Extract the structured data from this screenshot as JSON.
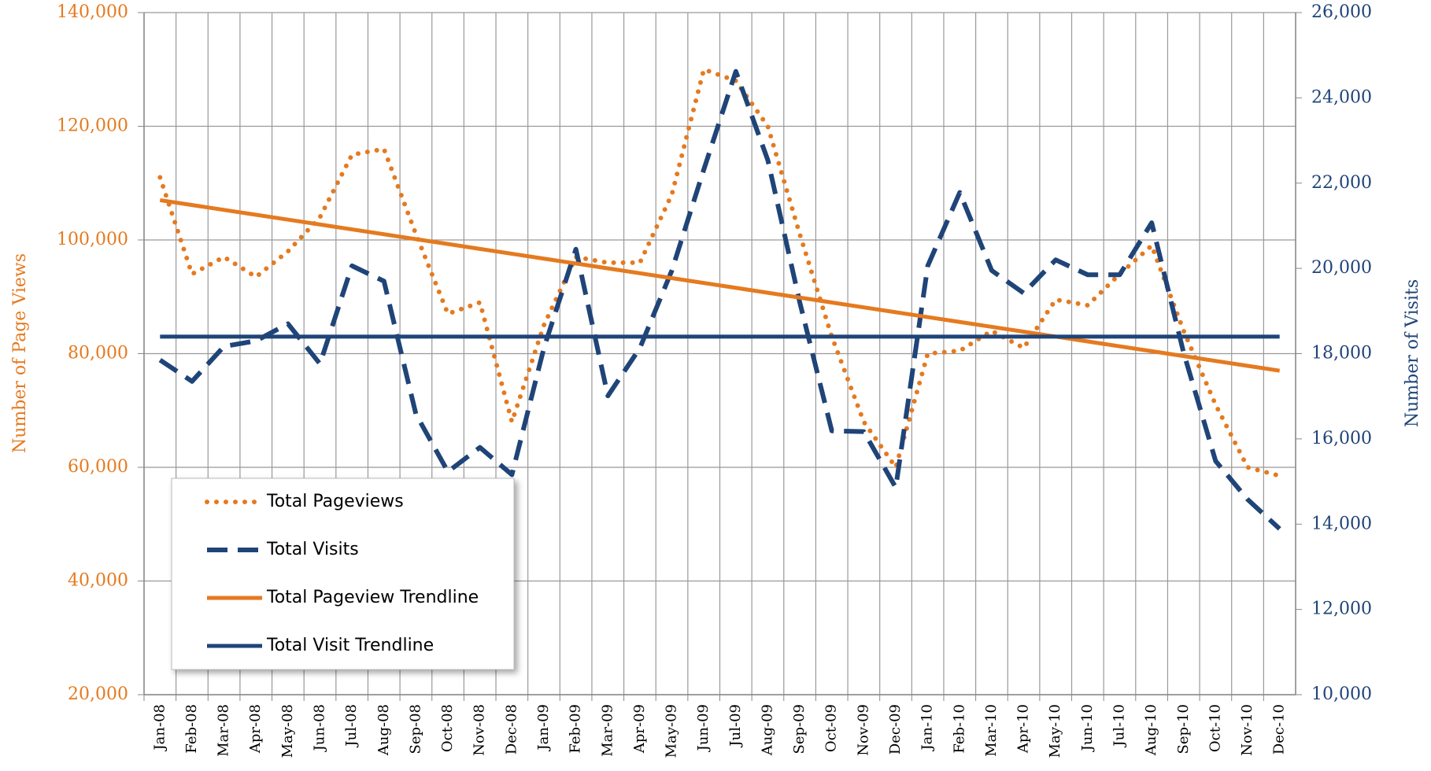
{
  "chart_data": {
    "type": "line",
    "categories": [
      "Jan-08",
      "Feb-08",
      "Mar-08",
      "Apr-08",
      "May-08",
      "Jun-08",
      "Jul-08",
      "Aug-08",
      "Sep-08",
      "Oct-08",
      "Nov-08",
      "Dec-08",
      "Jan-09",
      "Feb-09",
      "Mar-09",
      "Apr-09",
      "May-09",
      "Jun-09",
      "Jul-09",
      "Aug-09",
      "Sep-09",
      "Oct-09",
      "Nov-09",
      "Dec-09",
      "Jan-10",
      "Feb-10",
      "Mar-10",
      "Apr-10",
      "May-10",
      "Jun-10",
      "Jul-10",
      "Aug-10",
      "Sep-10",
      "Oct-10",
      "Nov-10",
      "Dec-10"
    ],
    "ylabel": "Number of Page Views",
    "y2label": "Number of Visits",
    "ylim": [
      20000,
      140000
    ],
    "yticks": [
      {
        "value": 20000,
        "label": "20,000"
      },
      {
        "value": 40000,
        "label": "40,000"
      },
      {
        "value": 60000,
        "label": "60,000"
      },
      {
        "value": 80000,
        "label": "80,000"
      },
      {
        "value": 100000,
        "label": "100,000"
      },
      {
        "value": 120000,
        "label": "120,000"
      },
      {
        "value": 140000,
        "label": "140,000"
      }
    ],
    "y2lim": [
      10000,
      26000
    ],
    "y2ticks": [
      {
        "value": 10000,
        "label": "10,000"
      },
      {
        "value": 12000,
        "label": "12,000"
      },
      {
        "value": 14000,
        "label": "14,000"
      },
      {
        "value": 16000,
        "label": "16,000"
      },
      {
        "value": 18000,
        "label": "18,000"
      },
      {
        "value": 20000,
        "label": "20,000"
      },
      {
        "value": 22000,
        "label": "22,000"
      },
      {
        "value": 24000,
        "label": "24,000"
      },
      {
        "value": 26000,
        "label": "26,000"
      }
    ],
    "grid": true,
    "legend": "lower left",
    "series": [
      {
        "name": "Total Pageviews",
        "color": "#e57a1f",
        "dash": "dotted",
        "axis": "y",
        "values": [
          111000,
          94000,
          97000,
          93500,
          98000,
          104000,
          115000,
          116000,
          101000,
          87000,
          89000,
          68000,
          85000,
          97000,
          96000,
          96000,
          108000,
          130000,
          128000,
          120000,
          101000,
          83000,
          68000,
          60000,
          80000,
          80500,
          84000,
          81000,
          89500,
          88500,
          94000,
          99000,
          84000,
          71000,
          60000,
          58500
        ]
      },
      {
        "name": "Total Visits",
        "color": "#1f4478",
        "dash": "dashed",
        "axis": "y2",
        "values": [
          17850,
          17350,
          18170,
          18300,
          18700,
          17760,
          20060,
          19700,
          16580,
          15230,
          15800,
          15160,
          18130,
          20450,
          17010,
          18130,
          19950,
          22320,
          24620,
          22540,
          19200,
          16190,
          16170,
          14860,
          20060,
          21780,
          19950,
          19420,
          20200,
          19850,
          19850,
          21070,
          18020,
          15480,
          14580,
          13890
        ]
      },
      {
        "name": "Total Pageview Trendline",
        "color": "#e57a1f",
        "dash": "solid",
        "axis": "y",
        "values": [
          107000,
          106143,
          105286,
          104429,
          103571,
          102714,
          101857,
          101000,
          100143,
          99286,
          98429,
          97571,
          96714,
          95857,
          95000,
          94143,
          93286,
          92429,
          91571,
          90714,
          89857,
          89000,
          88143,
          87286,
          86429,
          85571,
          84714,
          83857,
          83000,
          82143,
          81286,
          80429,
          79571,
          78714,
          77857,
          77000
        ]
      },
      {
        "name": "Total Visit Trendline",
        "color": "#1f4478",
        "dash": "solid",
        "axis": "y2",
        "values": [
          18400,
          18400,
          18400,
          18400,
          18400,
          18400,
          18400,
          18400,
          18400,
          18400,
          18400,
          18400,
          18400,
          18400,
          18400,
          18400,
          18400,
          18400,
          18400,
          18400,
          18400,
          18400,
          18400,
          18400,
          18400,
          18400,
          18400,
          18400,
          18400,
          18400,
          18400,
          18400,
          18400,
          18400,
          18400,
          18400
        ]
      }
    ]
  }
}
